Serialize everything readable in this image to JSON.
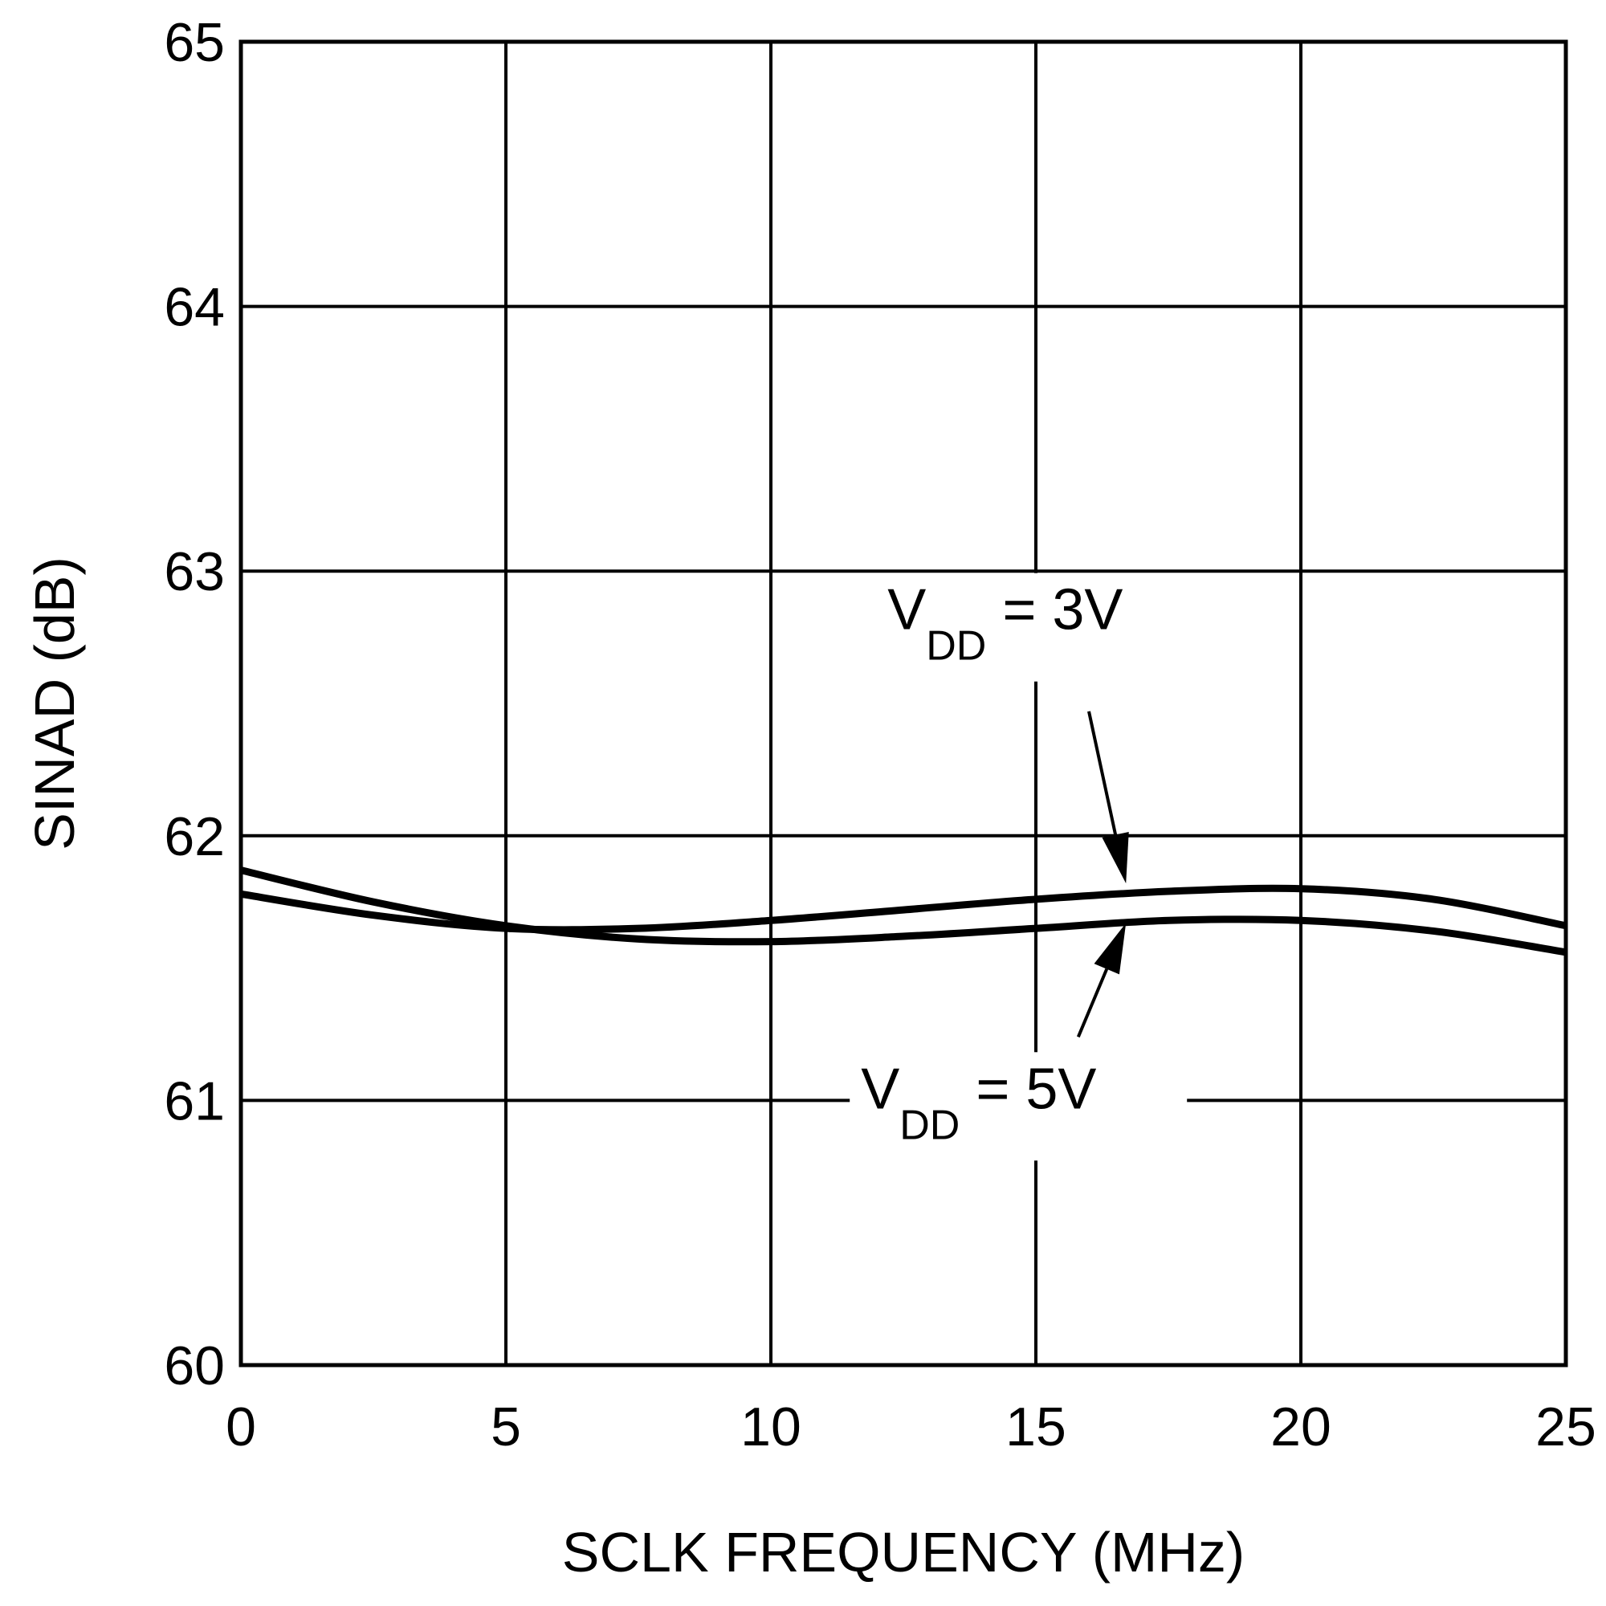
{
  "chart_data": {
    "type": "line",
    "title": "",
    "xlabel": "SCLK FREQUENCY (MHz)",
    "ylabel": "SINAD (dB)",
    "xlim": [
      0,
      25
    ],
    "ylim": [
      60,
      65
    ],
    "xticks": [
      "0",
      "5",
      "10",
      "15",
      "20",
      "25"
    ],
    "yticks": [
      "60",
      "61",
      "62",
      "63",
      "64",
      "65"
    ],
    "grid": true,
    "series": [
      {
        "name": "VDD = 3V",
        "x": [
          0,
          2.5,
          5,
          7.5,
          10,
          12.5,
          15,
          17.5,
          20,
          22.5,
          25
        ],
        "y": [
          61.78,
          61.7,
          61.65,
          61.65,
          61.68,
          61.72,
          61.76,
          61.79,
          61.8,
          61.76,
          61.66
        ]
      },
      {
        "name": "VDD = 5V",
        "x": [
          0,
          2.5,
          5,
          7.5,
          10,
          12.5,
          15,
          17.5,
          20,
          22.5,
          25
        ],
        "y": [
          61.87,
          61.75,
          61.66,
          61.61,
          61.6,
          61.62,
          61.65,
          61.68,
          61.68,
          61.64,
          61.56
        ]
      }
    ],
    "annotations": [
      {
        "main": "V",
        "sub": "DD",
        "rest": " = 3V"
      },
      {
        "main": "V",
        "sub": "DD",
        "rest": " = 5V"
      }
    ]
  }
}
